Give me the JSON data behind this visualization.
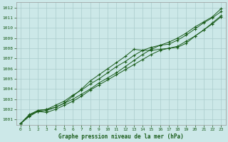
{
  "bg_color": "#cce8e8",
  "grid_color": "#aacccc",
  "line_color": "#1a5c1a",
  "title": "Graphe pression niveau de la mer (hPa)",
  "ylim": [
    1000.5,
    1012.5
  ],
  "xlim": [
    -0.5,
    23.5
  ],
  "yticks": [
    1001,
    1002,
    1003,
    1004,
    1005,
    1006,
    1007,
    1008,
    1009,
    1010,
    1011,
    1012
  ],
  "xticks": [
    0,
    1,
    2,
    3,
    4,
    5,
    6,
    7,
    8,
    9,
    10,
    11,
    12,
    13,
    14,
    15,
    16,
    17,
    18,
    19,
    20,
    21,
    22,
    23
  ],
  "series": [
    [
      1000.6,
      1001.3,
      1001.8,
      1001.9,
      1002.2,
      1002.6,
      1003.0,
      1003.5,
      1004.0,
      1004.6,
      1005.1,
      1005.6,
      1006.2,
      1006.8,
      1007.4,
      1007.9,
      1008.3,
      1008.6,
      1009.0,
      1009.5,
      1010.1,
      1010.6,
      1011.1,
      1011.9
    ],
    [
      1000.6,
      1001.4,
      1001.9,
      1002.0,
      1002.2,
      1002.6,
      1003.3,
      1004.0,
      1004.8,
      1005.4,
      1006.0,
      1006.6,
      1007.2,
      1007.9,
      1007.8,
      1007.8,
      1007.9,
      1008.0,
      1008.1,
      1008.5,
      1009.2,
      1009.8,
      1010.5,
      1011.2
    ],
    [
      1000.6,
      1001.4,
      1001.8,
      1001.7,
      1002.0,
      1002.4,
      1002.8,
      1003.3,
      1003.9,
      1004.4,
      1004.9,
      1005.4,
      1005.9,
      1006.4,
      1006.9,
      1007.4,
      1007.8,
      1008.0,
      1008.2,
      1008.7,
      1009.2,
      1009.8,
      1010.4,
      1011.1
    ],
    [
      1000.6,
      1001.5,
      1001.9,
      1002.0,
      1002.4,
      1002.8,
      1003.4,
      1003.9,
      1004.5,
      1005.0,
      1005.6,
      1006.2,
      1006.7,
      1007.3,
      1007.8,
      1008.1,
      1008.3,
      1008.4,
      1008.8,
      1009.3,
      1009.9,
      1010.5,
      1011.0,
      1011.6
    ]
  ]
}
